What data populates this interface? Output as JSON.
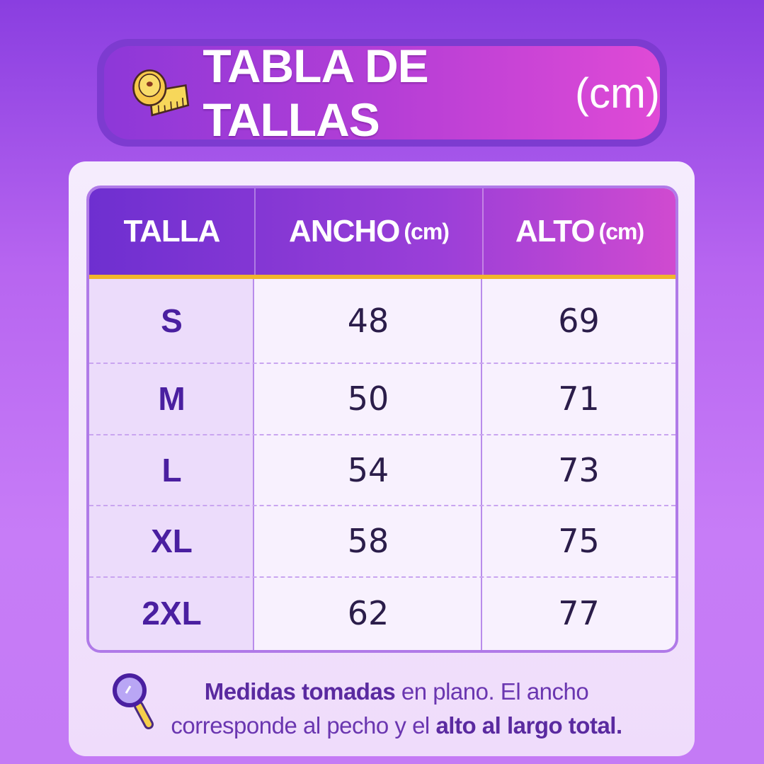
{
  "header": {
    "title": "TABLA DE TALLAS",
    "unit": "(cm)",
    "icon": "measuring-tape-icon"
  },
  "table": {
    "columns": [
      {
        "label": "TALLA",
        "unit": ""
      },
      {
        "label": "ANCHO",
        "unit": "(cm)"
      },
      {
        "label": "ALTO",
        "unit": "(cm)"
      }
    ],
    "rows": [
      {
        "size": "S",
        "ancho": "48",
        "alto": "69"
      },
      {
        "size": "M",
        "ancho": "50",
        "alto": "71"
      },
      {
        "size": "L",
        "ancho": "54",
        "alto": "73"
      },
      {
        "size": "XL",
        "ancho": "58",
        "alto": "75"
      },
      {
        "size": "2XL",
        "ancho": "62",
        "alto": "77"
      }
    ]
  },
  "note": {
    "icon": "magnifier-icon",
    "bold1": "Medidas tomadas",
    "text1": " en plano. El ancho corresponde al pecho y el ",
    "bold2": "alto al largo total."
  },
  "colors": {
    "accent": "#f1b62c",
    "header": "#7d3bd0",
    "text": "#4a1fa0"
  }
}
